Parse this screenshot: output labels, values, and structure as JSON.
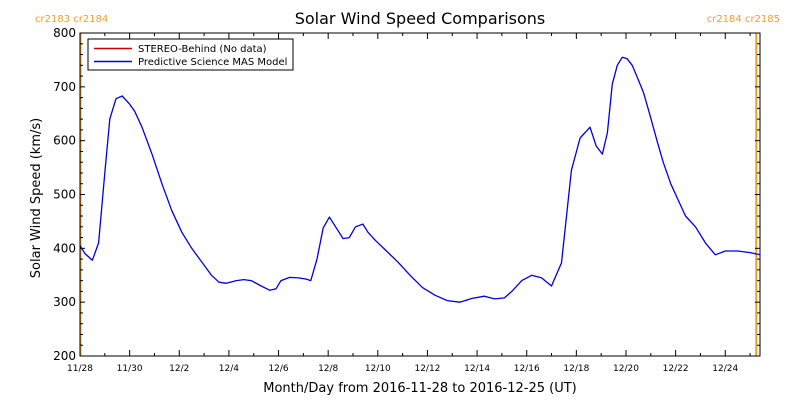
{
  "chart_data": {
    "type": "line",
    "title": "Solar Wind Speed Comparisons",
    "xlabel": "Month/Day from 2016-11-28 to 2016-12-25 (UT)",
    "ylabel": "Solar Wind Speed (km/s)",
    "ylim": [
      200,
      800
    ],
    "xlim": [
      0,
      27.4
    ],
    "x_unit": "days since 2016-11-28",
    "grid": false,
    "legend_position": "top-left",
    "x_ticks": [
      {
        "x": 0,
        "label": "11/28"
      },
      {
        "x": 2,
        "label": "11/30"
      },
      {
        "x": 4,
        "label": "12/2"
      },
      {
        "x": 6,
        "label": "12/4"
      },
      {
        "x": 8,
        "label": "12/6"
      },
      {
        "x": 10,
        "label": "12/8"
      },
      {
        "x": 12,
        "label": "12/10"
      },
      {
        "x": 14,
        "label": "12/12"
      },
      {
        "x": 16,
        "label": "12/14"
      },
      {
        "x": 18,
        "label": "12/16"
      },
      {
        "x": 20,
        "label": "12/18"
      },
      {
        "x": 22,
        "label": "12/20"
      },
      {
        "x": 24,
        "label": "12/22"
      },
      {
        "x": 26,
        "label": "12/24"
      }
    ],
    "y_ticks": [
      200,
      300,
      400,
      500,
      600,
      700,
      800
    ],
    "carrington_markers": [
      {
        "x": 0.02,
        "label": "cr2183 cr2184",
        "align": "left"
      },
      {
        "x": 27.25,
        "label": "cr2184 cr2185",
        "align": "right"
      }
    ],
    "series": [
      {
        "name": "STEREO-Behind (No data)",
        "color": "#cc0000",
        "x": [],
        "y": []
      },
      {
        "name": "Predictive Science MAS Model",
        "color": "#0000dd",
        "x": [
          0,
          0.2,
          0.5,
          0.75,
          1.0,
          1.2,
          1.45,
          1.7,
          2.0,
          2.2,
          2.5,
          2.9,
          3.3,
          3.7,
          4.1,
          4.5,
          4.9,
          5.3,
          5.6,
          5.9,
          6.3,
          6.6,
          6.9,
          7.3,
          7.65,
          7.9,
          8.1,
          8.45,
          8.8,
          9.1,
          9.3,
          9.55,
          9.8,
          10.05,
          10.3,
          10.6,
          10.85,
          11.1,
          11.4,
          11.6,
          11.9,
          12.3,
          12.8,
          13.3,
          13.8,
          14.3,
          14.8,
          15.3,
          15.8,
          16.3,
          16.7,
          17.1,
          17.4,
          17.8,
          18.2,
          18.6,
          19.0,
          19.4,
          19.8,
          20.15,
          20.55,
          20.8,
          21.05,
          21.25,
          21.45,
          21.65,
          21.85,
          22.05,
          22.25,
          22.45,
          22.7,
          22.95,
          23.25,
          23.5,
          23.8,
          24.1,
          24.4,
          24.8,
          25.2,
          25.6,
          26.0,
          26.5,
          27.0,
          27.4
        ],
        "y": [
          405,
          390,
          378,
          410,
          540,
          640,
          678,
          683,
          668,
          655,
          625,
          575,
          520,
          470,
          430,
          400,
          375,
          350,
          337,
          335,
          340,
          342,
          340,
          330,
          322,
          325,
          340,
          346,
          345,
          343,
          340,
          380,
          438,
          458,
          440,
          418,
          420,
          440,
          445,
          430,
          415,
          397,
          375,
          350,
          327,
          313,
          303,
          300,
          307,
          311,
          306,
          308,
          320,
          340,
          350,
          345,
          330,
          373,
          545,
          605,
          625,
          590,
          575,
          615,
          705,
          740,
          755,
          752,
          740,
          718,
          690,
          650,
          600,
          560,
          520,
          490,
          460,
          440,
          410,
          388,
          395,
          395,
          392,
          388
        ]
      }
    ]
  },
  "colors": {
    "marker": "#f0a020",
    "axis": "#000000",
    "background": "#ffffff"
  }
}
